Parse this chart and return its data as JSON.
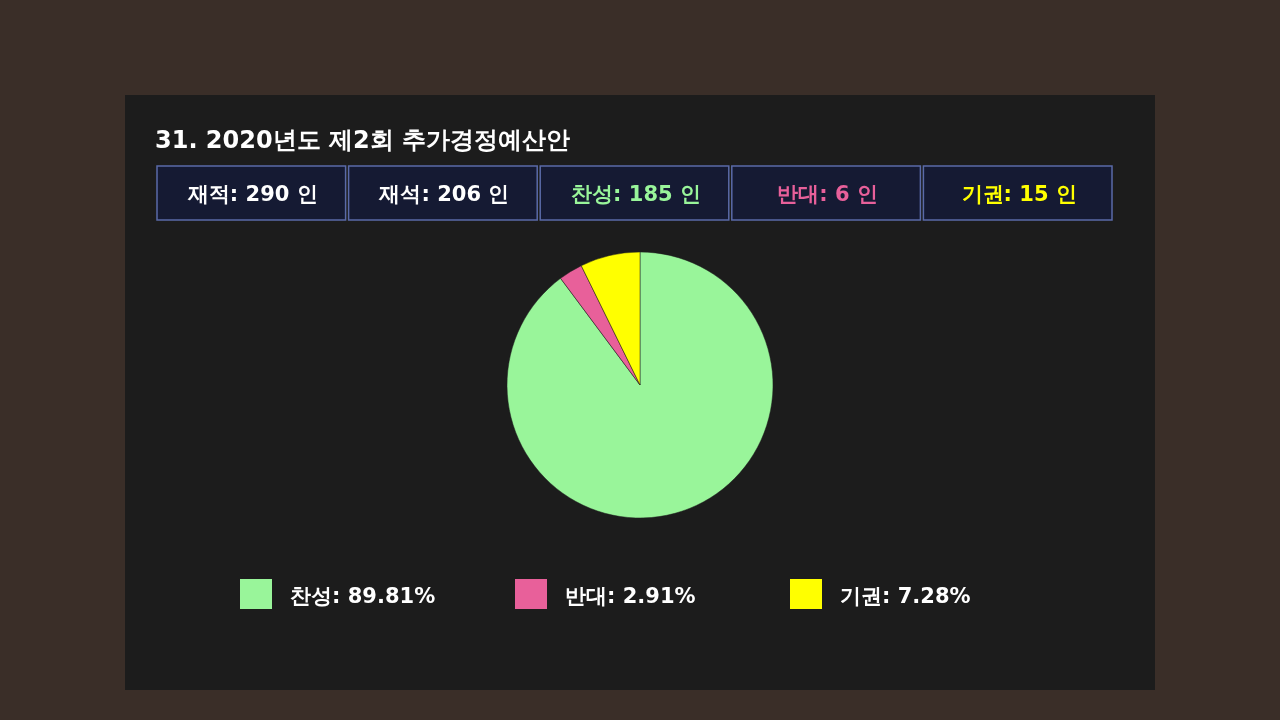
{
  "chart_data": {
    "type": "pie",
    "title": "31. 2020년도 제2회 추가경정예산안",
    "annotations": [
      "재적: 290 인",
      "재석: 206 인",
      "찬성: 185 인",
      "반대:  6 인",
      "기권:  15 인"
    ],
    "categories": [
      "찬성",
      "반대",
      "기권"
    ],
    "values": [
      89.81,
      2.91,
      7.28
    ],
    "value_labels": [
      "89.81%",
      "2.91%",
      "7.28%"
    ],
    "colors": [
      "#99f59a",
      "#e8609a",
      "#ffff00"
    ],
    "legend": "bottom"
  }
}
